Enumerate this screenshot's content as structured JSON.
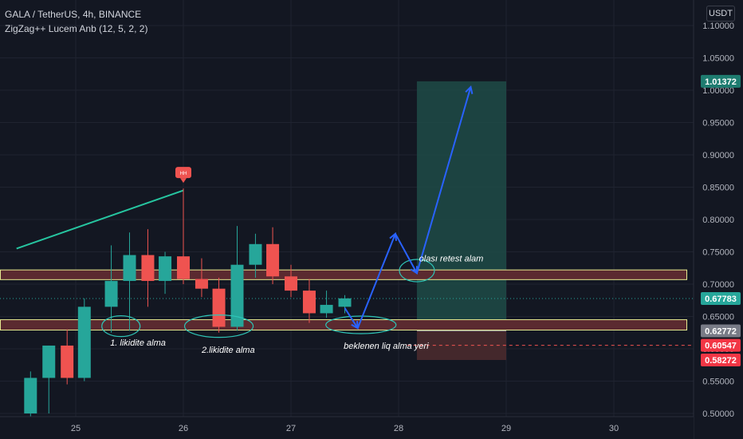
{
  "legend": {
    "symbol_line": "GALA / TetherUS, 4h, BINANCE",
    "indicator_line": "ZigZag++ Lucem Anb (12, 5, 2, 2)"
  },
  "currency_label": "USDT",
  "chart_data": {
    "type": "candlestick",
    "y_axis": {
      "min": 0.5,
      "max": 1.12,
      "ticks": [
        "0.50000",
        "0.55000",
        "0.60000",
        "0.65000",
        "0.70000",
        "0.75000",
        "0.80000",
        "0.85000",
        "0.90000",
        "0.95000",
        "1.00000",
        "1.05000",
        "1.10000"
      ]
    },
    "x_axis": {
      "min": 24.45,
      "max": 31.0,
      "ticks": [
        {
          "value": 25,
          "label": "25"
        },
        {
          "value": 26,
          "label": "26"
        },
        {
          "value": 27,
          "label": "27"
        },
        {
          "value": 28,
          "label": "28"
        },
        {
          "value": 29,
          "label": "29"
        },
        {
          "value": 30,
          "label": "30"
        }
      ]
    },
    "colors": {
      "up": "#26a69a",
      "down": "#ef5350",
      "background": "#131722",
      "grid": "#1f2330"
    },
    "candles": [
      {
        "t": 24.58,
        "o": 0.5,
        "h": 0.565,
        "l": 0.49,
        "c": 0.555
      },
      {
        "t": 24.75,
        "o": 0.555,
        "h": 0.605,
        "l": 0.5,
        "c": 0.605
      },
      {
        "t": 24.92,
        "o": 0.605,
        "h": 0.63,
        "l": 0.545,
        "c": 0.555
      },
      {
        "t": 25.08,
        "o": 0.555,
        "h": 0.678,
        "l": 0.55,
        "c": 0.665
      },
      {
        "t": 25.33,
        "o": 0.665,
        "h": 0.76,
        "l": 0.625,
        "c": 0.705
      },
      {
        "t": 25.5,
        "o": 0.705,
        "h": 0.78,
        "l": 0.628,
        "c": 0.745
      },
      {
        "t": 25.67,
        "o": 0.745,
        "h": 0.785,
        "l": 0.665,
        "c": 0.705
      },
      {
        "t": 25.83,
        "o": 0.705,
        "h": 0.75,
        "l": 0.685,
        "c": 0.743
      },
      {
        "t": 26.0,
        "o": 0.743,
        "h": 0.848,
        "l": 0.7,
        "c": 0.708
      },
      {
        "t": 26.17,
        "o": 0.708,
        "h": 0.74,
        "l": 0.68,
        "c": 0.693
      },
      {
        "t": 26.33,
        "o": 0.693,
        "h": 0.71,
        "l": 0.625,
        "c": 0.634
      },
      {
        "t": 26.5,
        "o": 0.634,
        "h": 0.79,
        "l": 0.628,
        "c": 0.73
      },
      {
        "t": 26.67,
        "o": 0.73,
        "h": 0.778,
        "l": 0.71,
        "c": 0.762
      },
      {
        "t": 26.83,
        "o": 0.762,
        "h": 0.788,
        "l": 0.7,
        "c": 0.712
      },
      {
        "t": 27.0,
        "o": 0.712,
        "h": 0.73,
        "l": 0.68,
        "c": 0.69
      },
      {
        "t": 27.17,
        "o": 0.69,
        "h": 0.708,
        "l": 0.64,
        "c": 0.655
      },
      {
        "t": 27.33,
        "o": 0.655,
        "h": 0.69,
        "l": 0.648,
        "c": 0.668
      },
      {
        "t": 27.5,
        "o": 0.665,
        "h": 0.683,
        "l": 0.655,
        "c": 0.678
      }
    ],
    "zones": [
      {
        "name": "upper-zone",
        "from": 0.707,
        "to": 0.722,
        "fill": "#5b2a30",
        "stroke": "#e6e98f"
      },
      {
        "name": "lower-zone",
        "from": 0.629,
        "to": 0.645,
        "fill": "#5b2a30",
        "stroke": "#e6e98f"
      }
    ],
    "position": {
      "entry": 0.62772,
      "target": 1.01372,
      "stop": 0.58272,
      "x_from": 28.17,
      "x_to": 29.0,
      "profit_fill": "#1f4b46",
      "loss_fill": "#4a2a2d"
    },
    "horizontal_lines": [
      {
        "name": "current-price-line",
        "price": 0.67783,
        "color": "#26a69a",
        "style": "dotted"
      },
      {
        "name": "liq-dashed-line",
        "price": 0.60547,
        "color": "#ef5350",
        "style": "dashed",
        "x_from": 28.08,
        "x_to": 31.0
      }
    ],
    "zigzag": {
      "color": "#26c5a0",
      "points": [
        {
          "t": 24.45,
          "p": 0.755
        },
        {
          "t": 26.0,
          "p": 0.845
        }
      ],
      "marker": {
        "t": 26.0,
        "p": 0.848,
        "label": "HH",
        "color": "#ef5350"
      }
    },
    "projection_path": {
      "color": "#2962ff",
      "points": [
        {
          "t": 27.5,
          "p": 0.663
        },
        {
          "t": 27.62,
          "p": 0.632
        },
        {
          "t": 27.97,
          "p": 0.778
        },
        {
          "t": 28.17,
          "p": 0.717
        },
        {
          "t": 28.67,
          "p": 1.005
        }
      ]
    },
    "ellipses": [
      {
        "name": "ellipse-1",
        "t": 25.42,
        "p": 0.635,
        "rx": 24,
        "ry": 13
      },
      {
        "name": "ellipse-2",
        "t": 26.33,
        "p": 0.635,
        "rx": 43,
        "ry": 14
      },
      {
        "name": "ellipse-3",
        "t": 27.65,
        "p": 0.637,
        "rx": 44,
        "ry": 11
      },
      {
        "name": "ellipse-4",
        "t": 28.17,
        "p": 0.721,
        "rx": 22,
        "ry": 14
      }
    ],
    "annotations": [
      {
        "name": "annotation-likidite-1",
        "text": "1. likidite alma",
        "t": 25.32,
        "p": 0.605
      },
      {
        "name": "annotation-likidite-2",
        "text": "2.likidite alma",
        "t": 26.17,
        "p": 0.594
      },
      {
        "name": "annotation-beklenen",
        "text": "beklenen liq alma yeri",
        "t": 27.49,
        "p": 0.6
      },
      {
        "name": "annotation-retest",
        "text": "olası retest alam",
        "t": 28.19,
        "p": 0.735
      }
    ],
    "price_labels": [
      {
        "name": "price-label-target",
        "price": 1.01372,
        "text": "1.01372",
        "color": "#1e7c70"
      },
      {
        "name": "price-label-current",
        "price": 0.67783,
        "text": "0.67783",
        "color": "#26a69a"
      },
      {
        "name": "price-label-entry",
        "price": 0.62772,
        "text": "0.62772",
        "color": "#787b86"
      },
      {
        "name": "price-label-liq",
        "price": 0.60547,
        "text": "0.60547",
        "color": "#f23645"
      },
      {
        "name": "price-label-stop",
        "price": 0.58272,
        "text": "0.58272",
        "color": "#f23645"
      }
    ]
  }
}
